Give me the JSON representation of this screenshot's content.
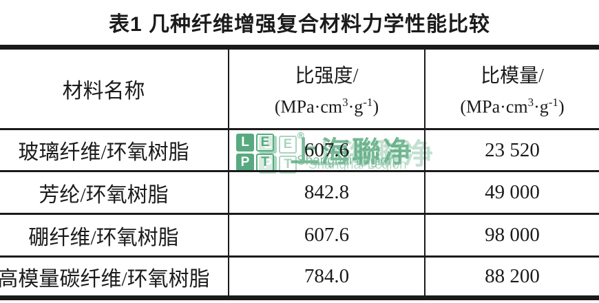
{
  "title": "表1  几种纤维增强复合材料力学性能比较",
  "table": {
    "headers": {
      "material": "材料名称",
      "strength_label": "比强度/",
      "modulus_label": "比模量/",
      "unit": {
        "p1": "(MPa·cm",
        "sup1": "3",
        "p2": "·g",
        "sup2": "-1",
        "p3": ")"
      }
    },
    "rows": [
      {
        "material": "玻璃纤维/环氧树脂",
        "strength": "607.6",
        "modulus": "23 520"
      },
      {
        "material": "芳纶/环氧树脂",
        "strength": "842.8",
        "modulus": "49 000"
      },
      {
        "material": "硼纤维/环氧树脂",
        "strength": "607.6",
        "modulus": "98 000"
      },
      {
        "material": "高模量碳纤维/环氧树脂",
        "strength": "784.0",
        "modulus": "88 200"
      }
    ]
  },
  "watermark": {
    "logo": {
      "l": "L",
      "e": "E",
      "p": "P",
      "t": "T"
    },
    "registered": "®",
    "cn_text": "上海聯净",
    "en_text": "Shanghai Legion",
    "colors": {
      "solid_green": "#57aa80",
      "text_green": "#55a87c",
      "light_green": "#7dbd9b"
    }
  },
  "chart_data": {
    "type": "table",
    "title": "表1 几种纤维增强复合材料力学性能比较",
    "columns": [
      "材料名称",
      "比强度/(MPa·cm3·g-1)",
      "比模量/(MPa·cm3·g-1)"
    ],
    "rows": [
      [
        "玻璃纤维/环氧树脂",
        607.6,
        23520
      ],
      [
        "芳纶/环氧树脂",
        842.8,
        49000
      ],
      [
        "硼纤维/环氧树脂",
        607.6,
        98000
      ],
      [
        "高模量碳纤维/环氧树脂",
        784.0,
        88200
      ]
    ]
  }
}
